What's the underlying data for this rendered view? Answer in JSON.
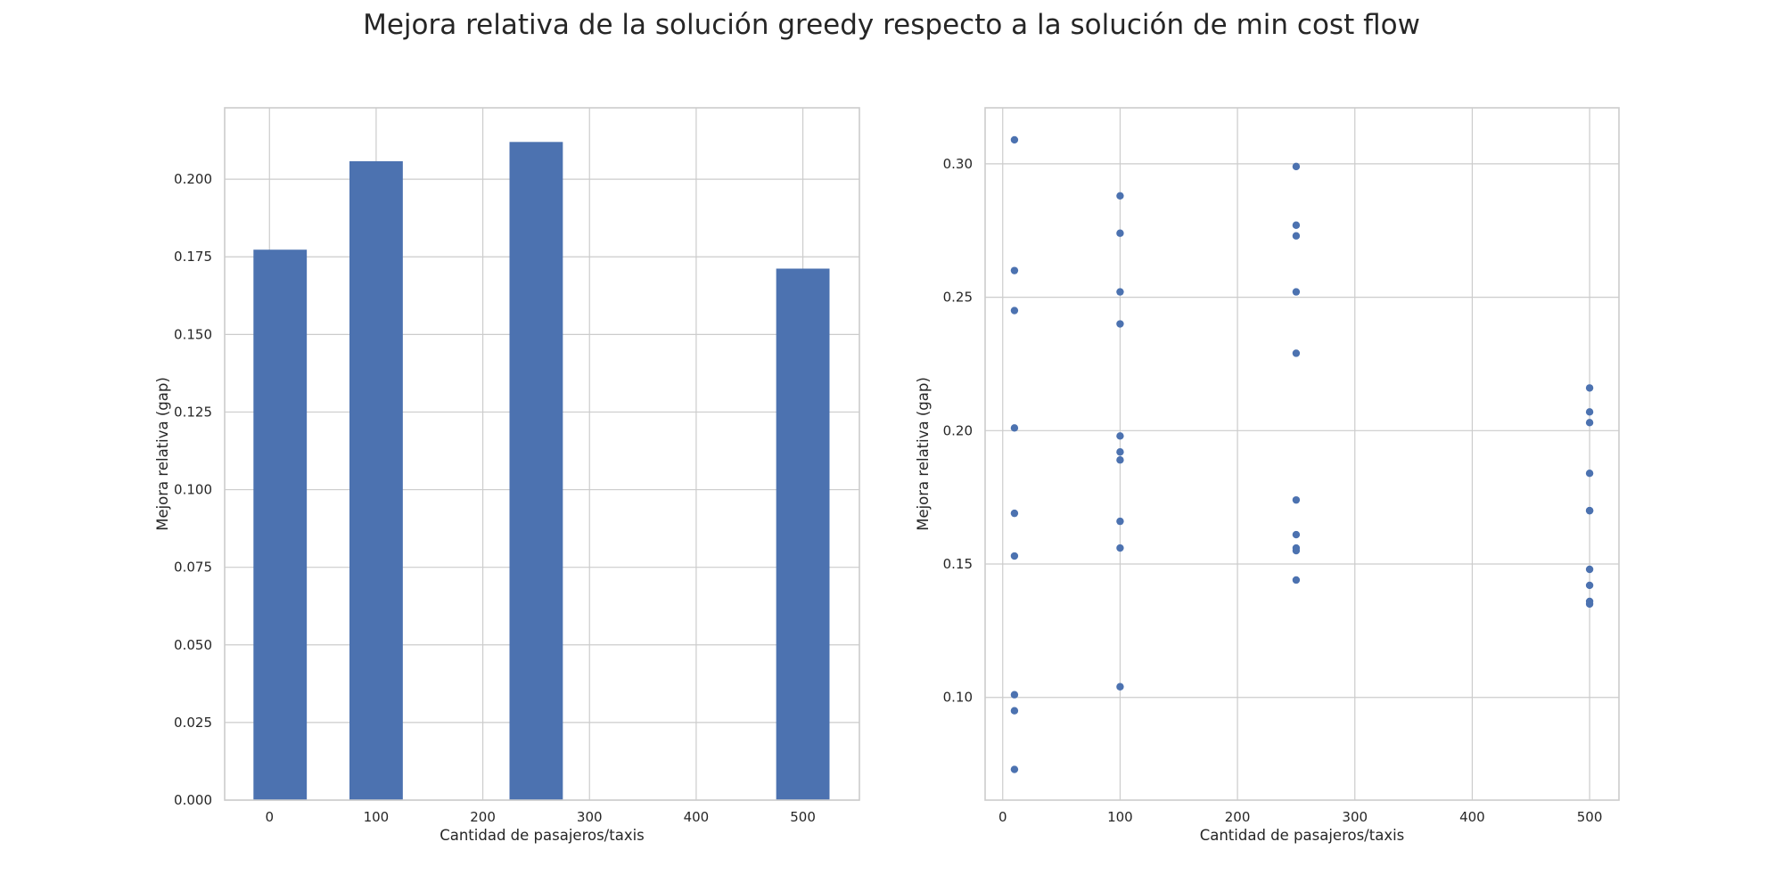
{
  "title": "Mejora relativa de la solución greedy respecto a la solución de min cost flow",
  "colors": {
    "series": "#4c72b0",
    "grid": "#cccccc",
    "frame": "#cccccc",
    "text": "#262626"
  },
  "chart_data": [
    {
      "type": "bar",
      "xlabel": "Cantidad de pasajeros/taxis",
      "ylabel": "Mejora relativa (gap)",
      "x": [
        10,
        100,
        250,
        500
      ],
      "values": [
        0.1773,
        0.2058,
        0.212,
        0.1712
      ],
      "bar_width": 50,
      "xlim": [
        -42,
        553
      ],
      "ylim": [
        0,
        0.223
      ],
      "xticks": [
        0,
        100,
        200,
        300,
        400,
        500
      ],
      "xtick_labels": [
        "0",
        "100",
        "200",
        "300",
        "400",
        "500"
      ],
      "yticks": [
        0,
        0.025,
        0.05,
        0.075,
        0.1,
        0.125,
        0.15,
        0.175,
        0.2
      ],
      "ytick_labels": [
        "0.000",
        "0.025",
        "0.050",
        "0.075",
        "0.100",
        "0.125",
        "0.150",
        "0.175",
        "0.200"
      ],
      "grid": true
    },
    {
      "type": "scatter",
      "xlabel": "Cantidad de pasajeros/taxis",
      "ylabel": "Mejora relativa (gap)",
      "points": [
        {
          "x": 10,
          "y": 0.309
        },
        {
          "x": 10,
          "y": 0.26
        },
        {
          "x": 10,
          "y": 0.245
        },
        {
          "x": 10,
          "y": 0.201
        },
        {
          "x": 10,
          "y": 0.169
        },
        {
          "x": 10,
          "y": 0.153
        },
        {
          "x": 10,
          "y": 0.101
        },
        {
          "x": 10,
          "y": 0.095
        },
        {
          "x": 10,
          "y": 0.073
        },
        {
          "x": 100,
          "y": 0.288
        },
        {
          "x": 100,
          "y": 0.274
        },
        {
          "x": 100,
          "y": 0.252
        },
        {
          "x": 100,
          "y": 0.24
        },
        {
          "x": 100,
          "y": 0.198
        },
        {
          "x": 100,
          "y": 0.192
        },
        {
          "x": 100,
          "y": 0.189
        },
        {
          "x": 100,
          "y": 0.166
        },
        {
          "x": 100,
          "y": 0.156
        },
        {
          "x": 100,
          "y": 0.104
        },
        {
          "x": 250,
          "y": 0.299
        },
        {
          "x": 250,
          "y": 0.277
        },
        {
          "x": 250,
          "y": 0.273
        },
        {
          "x": 250,
          "y": 0.252
        },
        {
          "x": 250,
          "y": 0.229
        },
        {
          "x": 250,
          "y": 0.174
        },
        {
          "x": 250,
          "y": 0.161
        },
        {
          "x": 250,
          "y": 0.156
        },
        {
          "x": 250,
          "y": 0.155
        },
        {
          "x": 250,
          "y": 0.144
        },
        {
          "x": 500,
          "y": 0.216
        },
        {
          "x": 500,
          "y": 0.207
        },
        {
          "x": 500,
          "y": 0.203
        },
        {
          "x": 500,
          "y": 0.184
        },
        {
          "x": 500,
          "y": 0.17
        },
        {
          "x": 500,
          "y": 0.17
        },
        {
          "x": 500,
          "y": 0.148
        },
        {
          "x": 500,
          "y": 0.142
        },
        {
          "x": 500,
          "y": 0.136
        },
        {
          "x": 500,
          "y": 0.135
        }
      ],
      "xlim": [
        -15,
        525
      ],
      "ylim": [
        0.0615,
        0.321
      ],
      "xticks": [
        0,
        100,
        200,
        300,
        400,
        500
      ],
      "xtick_labels": [
        "0",
        "100",
        "200",
        "300",
        "400",
        "500"
      ],
      "yticks": [
        0.1,
        0.15,
        0.2,
        0.25,
        0.3
      ],
      "ytick_labels": [
        "0.10",
        "0.15",
        "0.20",
        "0.25",
        "0.30"
      ],
      "grid": true
    }
  ]
}
